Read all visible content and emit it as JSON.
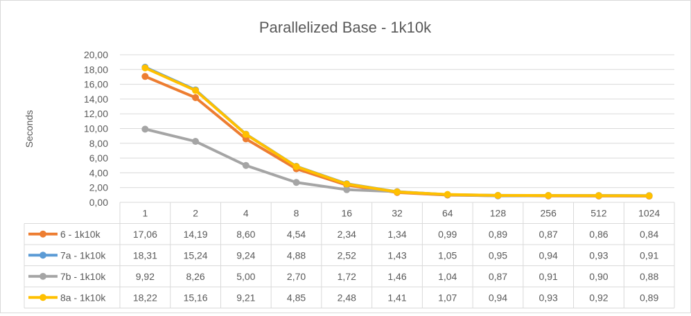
{
  "chart_data": {
    "type": "line",
    "title": "Parallelized Base  - 1k10k",
    "ylabel": "Seconds",
    "xlabel": "",
    "ylim": [
      0,
      20
    ],
    "y_ticks": [
      "0,00",
      "2,00",
      "4,00",
      "6,00",
      "8,00",
      "10,00",
      "12,00",
      "14,00",
      "16,00",
      "18,00",
      "20,00"
    ],
    "grid": true,
    "legend": "data-table-left",
    "categories": [
      "1",
      "2",
      "4",
      "8",
      "16",
      "32",
      "64",
      "128",
      "256",
      "512",
      "1024"
    ],
    "series": [
      {
        "name": "6 - 1k10k",
        "color": "#ed7d31",
        "values": [
          17.06,
          14.19,
          8.6,
          4.54,
          2.34,
          1.34,
          0.99,
          0.89,
          0.87,
          0.86,
          0.84
        ],
        "labels": [
          "17,06",
          "14,19",
          "8,60",
          "4,54",
          "2,34",
          "1,34",
          "0,99",
          "0,89",
          "0,87",
          "0,86",
          "0,84"
        ]
      },
      {
        "name": "7a - 1k10k",
        "color": "#5b9bd5",
        "values": [
          18.31,
          15.24,
          9.24,
          4.88,
          2.52,
          1.43,
          1.05,
          0.95,
          0.94,
          0.93,
          0.91
        ],
        "labels": [
          "18,31",
          "15,24",
          "9,24",
          "4,88",
          "2,52",
          "1,43",
          "1,05",
          "0,95",
          "0,94",
          "0,93",
          "0,91"
        ]
      },
      {
        "name": "7b - 1k10k",
        "color": "#a5a5a5",
        "values": [
          9.92,
          8.26,
          5.0,
          2.7,
          1.72,
          1.46,
          1.04,
          0.87,
          0.91,
          0.9,
          0.88
        ],
        "labels": [
          "9,92",
          "8,26",
          "5,00",
          "2,70",
          "1,72",
          "1,46",
          "1,04",
          "0,87",
          "0,91",
          "0,90",
          "0,88"
        ]
      },
      {
        "name": "8a - 1k10k",
        "color": "#ffc000",
        "values": [
          18.22,
          15.16,
          9.21,
          4.85,
          2.48,
          1.41,
          1.07,
          0.94,
          0.93,
          0.92,
          0.89
        ],
        "labels": [
          "18,22",
          "15,16",
          "9,21",
          "4,85",
          "2,48",
          "1,41",
          "1,07",
          "0,94",
          "0,93",
          "0,92",
          "0,89"
        ]
      }
    ]
  }
}
